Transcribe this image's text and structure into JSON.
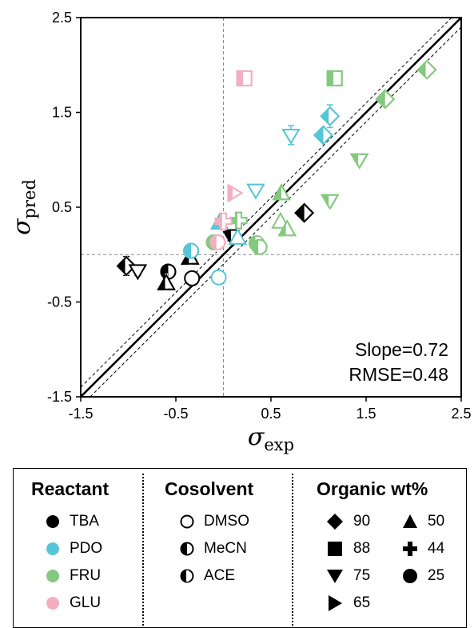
{
  "chart_data": {
    "type": "scatter",
    "xlabel": "σ_exp",
    "ylabel": "σ_pred",
    "xlim": [
      -1.5,
      2.5
    ],
    "ylim": [
      -1.5,
      2.5
    ],
    "xticks": [
      "-1.5",
      "-0.5",
      "0.5",
      "1.5",
      "2.5"
    ],
    "yticks": [
      "-1.5",
      "-0.5",
      "0.5",
      "1.5",
      "2.5"
    ],
    "reference_lines": [
      "y = x (solid)",
      "y = x ± 0.1 (dashed)",
      "x = 0 (dashed)",
      "y = 0 (dashed)"
    ],
    "annotations": [
      "Slope=0.72",
      "RMSE=0.48"
    ],
    "colors": {
      "TBA": "#000000",
      "PDO": "#56c5d8",
      "FRU": "#84c97e",
      "GLU": "#f3aec0"
    },
    "points": [
      {
        "reactant": "TBA",
        "cosolvent": "ACE",
        "wt": "90",
        "x": -1.02,
        "y": -0.12,
        "err": 0.1
      },
      {
        "reactant": "TBA",
        "cosolvent": "DMSO",
        "wt": "75",
        "x": -0.9,
        "y": -0.17,
        "err": 0.05
      },
      {
        "reactant": "TBA",
        "cosolvent": "MeCN",
        "wt": "25",
        "x": -0.58,
        "y": -0.18,
        "err": 0.05
      },
      {
        "reactant": "TBA",
        "cosolvent": "ACE",
        "wt": "50",
        "x": -0.6,
        "y": -0.3,
        "err": 0.05
      },
      {
        "reactant": "TBA",
        "cosolvent": "ACE",
        "wt": "50",
        "x": -0.35,
        "y": -0.03,
        "err": 0.03
      },
      {
        "reactant": "TBA",
        "cosolvent": "DMSO",
        "wt": "25",
        "x": -0.33,
        "y": -0.25,
        "err": 0.03
      },
      {
        "reactant": "TBA",
        "cosolvent": "MeCN",
        "wt": "75",
        "x": 0.08,
        "y": 0.2,
        "err": 0.05
      },
      {
        "reactant": "TBA",
        "cosolvent": "MeCN",
        "wt": "90",
        "x": 0.85,
        "y": 0.44,
        "err": 0.03
      },
      {
        "reactant": "PDO",
        "cosolvent": "MeCN",
        "wt": "25",
        "x": -0.34,
        "y": 0.04,
        "err": 0.03
      },
      {
        "reactant": "PDO",
        "cosolvent": "DMSO",
        "wt": "25",
        "x": -0.05,
        "y": -0.24,
        "err": 0.03
      },
      {
        "reactant": "PDO",
        "cosolvent": "MeCN",
        "wt": "50",
        "x": -0.04,
        "y": 0.34,
        "err": 0.04
      },
      {
        "reactant": "PDO",
        "cosolvent": "DMSO",
        "wt": "50",
        "x": 0.15,
        "y": 0.18,
        "err": 0.04
      },
      {
        "reactant": "PDO",
        "cosolvent": "DMSO",
        "wt": "75",
        "x": 0.34,
        "y": 0.68,
        "err": 0.03
      },
      {
        "reactant": "PDO",
        "cosolvent": "DMSO",
        "wt": "75",
        "x": 0.71,
        "y": 1.26,
        "err": 0.1
      },
      {
        "reactant": "PDO",
        "cosolvent": "MeCN",
        "wt": "90",
        "x": 1.05,
        "y": 1.26,
        "err": 0.05
      },
      {
        "reactant": "PDO",
        "cosolvent": "ACE",
        "wt": "90",
        "x": 1.12,
        "y": 1.46,
        "err": 0.12
      },
      {
        "reactant": "FRU",
        "cosolvent": "ACE",
        "wt": "25",
        "x": -0.1,
        "y": 0.13,
        "err": 0.03
      },
      {
        "reactant": "FRU",
        "cosolvent": "ACE",
        "wt": "44",
        "x": 0.16,
        "y": 0.36,
        "err": 0.05
      },
      {
        "reactant": "FRU",
        "cosolvent": "ACE",
        "wt": "25",
        "x": 0.35,
        "y": 0.12,
        "err": 0.03
      },
      {
        "reactant": "FRU",
        "cosolvent": "ACE",
        "wt": "25",
        "x": 0.38,
        "y": 0.08,
        "err": 0.03
      },
      {
        "reactant": "FRU",
        "cosolvent": "MeCN",
        "wt": "50",
        "x": 0.61,
        "y": 0.65,
        "err": 0.04
      },
      {
        "reactant": "FRU",
        "cosolvent": "DMSO",
        "wt": "50",
        "x": 0.6,
        "y": 0.35,
        "err": 0.03
      },
      {
        "reactant": "FRU",
        "cosolvent": "ACE",
        "wt": "50",
        "x": 0.67,
        "y": 0.27,
        "err": 0.05
      },
      {
        "reactant": "FRU",
        "cosolvent": "ACE",
        "wt": "75",
        "x": 1.12,
        "y": 0.57,
        "err": 0.05
      },
      {
        "reactant": "FRU",
        "cosolvent": "ACE",
        "wt": "88",
        "x": 1.17,
        "y": 1.86,
        "err": 0.03
      },
      {
        "reactant": "FRU",
        "cosolvent": "ACE",
        "wt": "75",
        "x": 1.43,
        "y": 1.0,
        "err": 0.05
      },
      {
        "reactant": "FRU",
        "cosolvent": "MeCN",
        "wt": "90",
        "x": 1.7,
        "y": 1.64,
        "err": 0.05
      },
      {
        "reactant": "FRU",
        "cosolvent": "ACE",
        "wt": "90",
        "x": 2.14,
        "y": 1.95,
        "err": 0.05
      },
      {
        "reactant": "GLU",
        "cosolvent": "ACE",
        "wt": "25",
        "x": -0.06,
        "y": 0.13,
        "err": 0.03
      },
      {
        "reactant": "GLU",
        "cosolvent": "ACE",
        "wt": "44",
        "x": 0.0,
        "y": 0.35,
        "err": 0.04
      },
      {
        "reactant": "GLU",
        "cosolvent": "ACE",
        "wt": "65",
        "x": 0.11,
        "y": 0.65,
        "err": 0.03
      },
      {
        "reactant": "GLU",
        "cosolvent": "ACE",
        "wt": "88",
        "x": 0.22,
        "y": 1.86,
        "err": 0.03
      }
    ]
  },
  "stats": {
    "slope": "Slope=0.72",
    "rmse": "RMSE=0.48"
  },
  "legend": {
    "reactant_title": "Reactant",
    "cosolvent_title": "Cosolvent",
    "wt_title": "Organic wt%",
    "reactants": [
      {
        "label": "TBA",
        "color": "#000000"
      },
      {
        "label": "PDO",
        "color": "#56c5d8"
      },
      {
        "label": "FRU",
        "color": "#84c97e"
      },
      {
        "label": "GLU",
        "color": "#f3aec0"
      }
    ],
    "cosolvents": [
      {
        "label": "DMSO",
        "icon": "open-circle-icon"
      },
      {
        "label": "MeCN",
        "icon": "half-filled-circle-icon"
      },
      {
        "label": "ACE",
        "icon": "quarter-filled-circle-icon"
      }
    ],
    "wts": [
      {
        "label": "90",
        "icon": "diamond-icon"
      },
      {
        "label": "50",
        "icon": "triangle-up-icon"
      },
      {
        "label": "88",
        "icon": "square-icon"
      },
      {
        "label": "44",
        "icon": "plus-icon"
      },
      {
        "label": "75",
        "icon": "triangle-down-icon"
      },
      {
        "label": "25",
        "icon": "circle-icon"
      },
      {
        "label": "65",
        "icon": "triangle-right-icon"
      }
    ]
  }
}
